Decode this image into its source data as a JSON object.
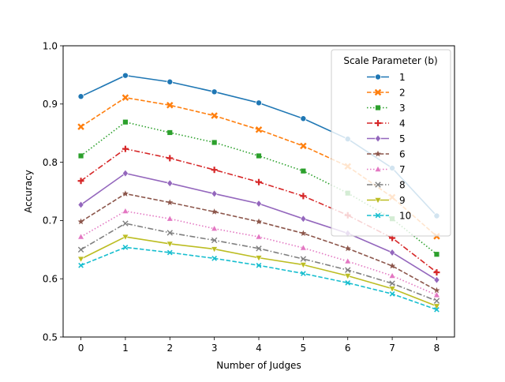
{
  "chart_data": {
    "type": "line",
    "title": "",
    "xlabel": "Number of Judges",
    "ylabel": "Accuracy",
    "xlim": [
      -0.4,
      8.4
    ],
    "ylim": [
      0.5,
      1.0
    ],
    "x": [
      0,
      1,
      2,
      3,
      4,
      5,
      6,
      7,
      8
    ],
    "xticks": [
      "0",
      "1",
      "2",
      "3",
      "4",
      "5",
      "6",
      "7",
      "8"
    ],
    "yticks": [
      "0.5",
      "0.6",
      "0.7",
      "0.8",
      "0.9",
      "1.0"
    ],
    "grid": false,
    "legend": {
      "title": "Scale Parameter (b)",
      "placement": "top-right"
    },
    "series": [
      {
        "name": "1",
        "color": "#1f77b4",
        "dash": "solid",
        "marker": "circle",
        "values": [
          0.913,
          0.949,
          0.938,
          0.921,
          0.902,
          0.875,
          0.84,
          0.79,
          0.708
        ]
      },
      {
        "name": "2",
        "color": "#ff7f0e",
        "dash": "dashed",
        "marker": "x-thick",
        "values": [
          0.861,
          0.911,
          0.898,
          0.88,
          0.856,
          0.828,
          0.793,
          0.74,
          0.673
        ]
      },
      {
        "name": "3",
        "color": "#2ca02c",
        "dash": "dotted",
        "marker": "square",
        "values": [
          0.811,
          0.869,
          0.851,
          0.834,
          0.811,
          0.785,
          0.747,
          0.703,
          0.642
        ]
      },
      {
        "name": "4",
        "color": "#d62728",
        "dash": "dashdot",
        "marker": "plus",
        "values": [
          0.768,
          0.823,
          0.807,
          0.787,
          0.766,
          0.742,
          0.709,
          0.67,
          0.611
        ]
      },
      {
        "name": "5",
        "color": "#9467bd",
        "dash": "solid",
        "marker": "diamond",
        "values": [
          0.727,
          0.781,
          0.764,
          0.746,
          0.729,
          0.703,
          0.678,
          0.645,
          0.598
        ]
      },
      {
        "name": "6",
        "color": "#8c564b",
        "dash": "dashed",
        "marker": "star",
        "values": [
          0.698,
          0.746,
          0.731,
          0.715,
          0.698,
          0.678,
          0.652,
          0.622,
          0.58
        ]
      },
      {
        "name": "7",
        "color": "#e377c2",
        "dash": "dotted",
        "marker": "triangle",
        "values": [
          0.672,
          0.716,
          0.703,
          0.686,
          0.672,
          0.653,
          0.63,
          0.605,
          0.572
        ]
      },
      {
        "name": "8",
        "color": "#7f7f7f",
        "dash": "dashdot",
        "marker": "x-thin",
        "values": [
          0.65,
          0.695,
          0.679,
          0.666,
          0.652,
          0.634,
          0.615,
          0.592,
          0.562
        ]
      },
      {
        "name": "9",
        "color": "#bcbd22",
        "dash": "solid",
        "marker": "triangle-down",
        "values": [
          0.634,
          0.672,
          0.66,
          0.651,
          0.636,
          0.624,
          0.605,
          0.583,
          0.553
        ]
      },
      {
        "name": "10",
        "color": "#17becf",
        "dash": "dashed",
        "marker": "x-small",
        "values": [
          0.623,
          0.654,
          0.645,
          0.635,
          0.623,
          0.609,
          0.593,
          0.574,
          0.547
        ]
      }
    ]
  }
}
